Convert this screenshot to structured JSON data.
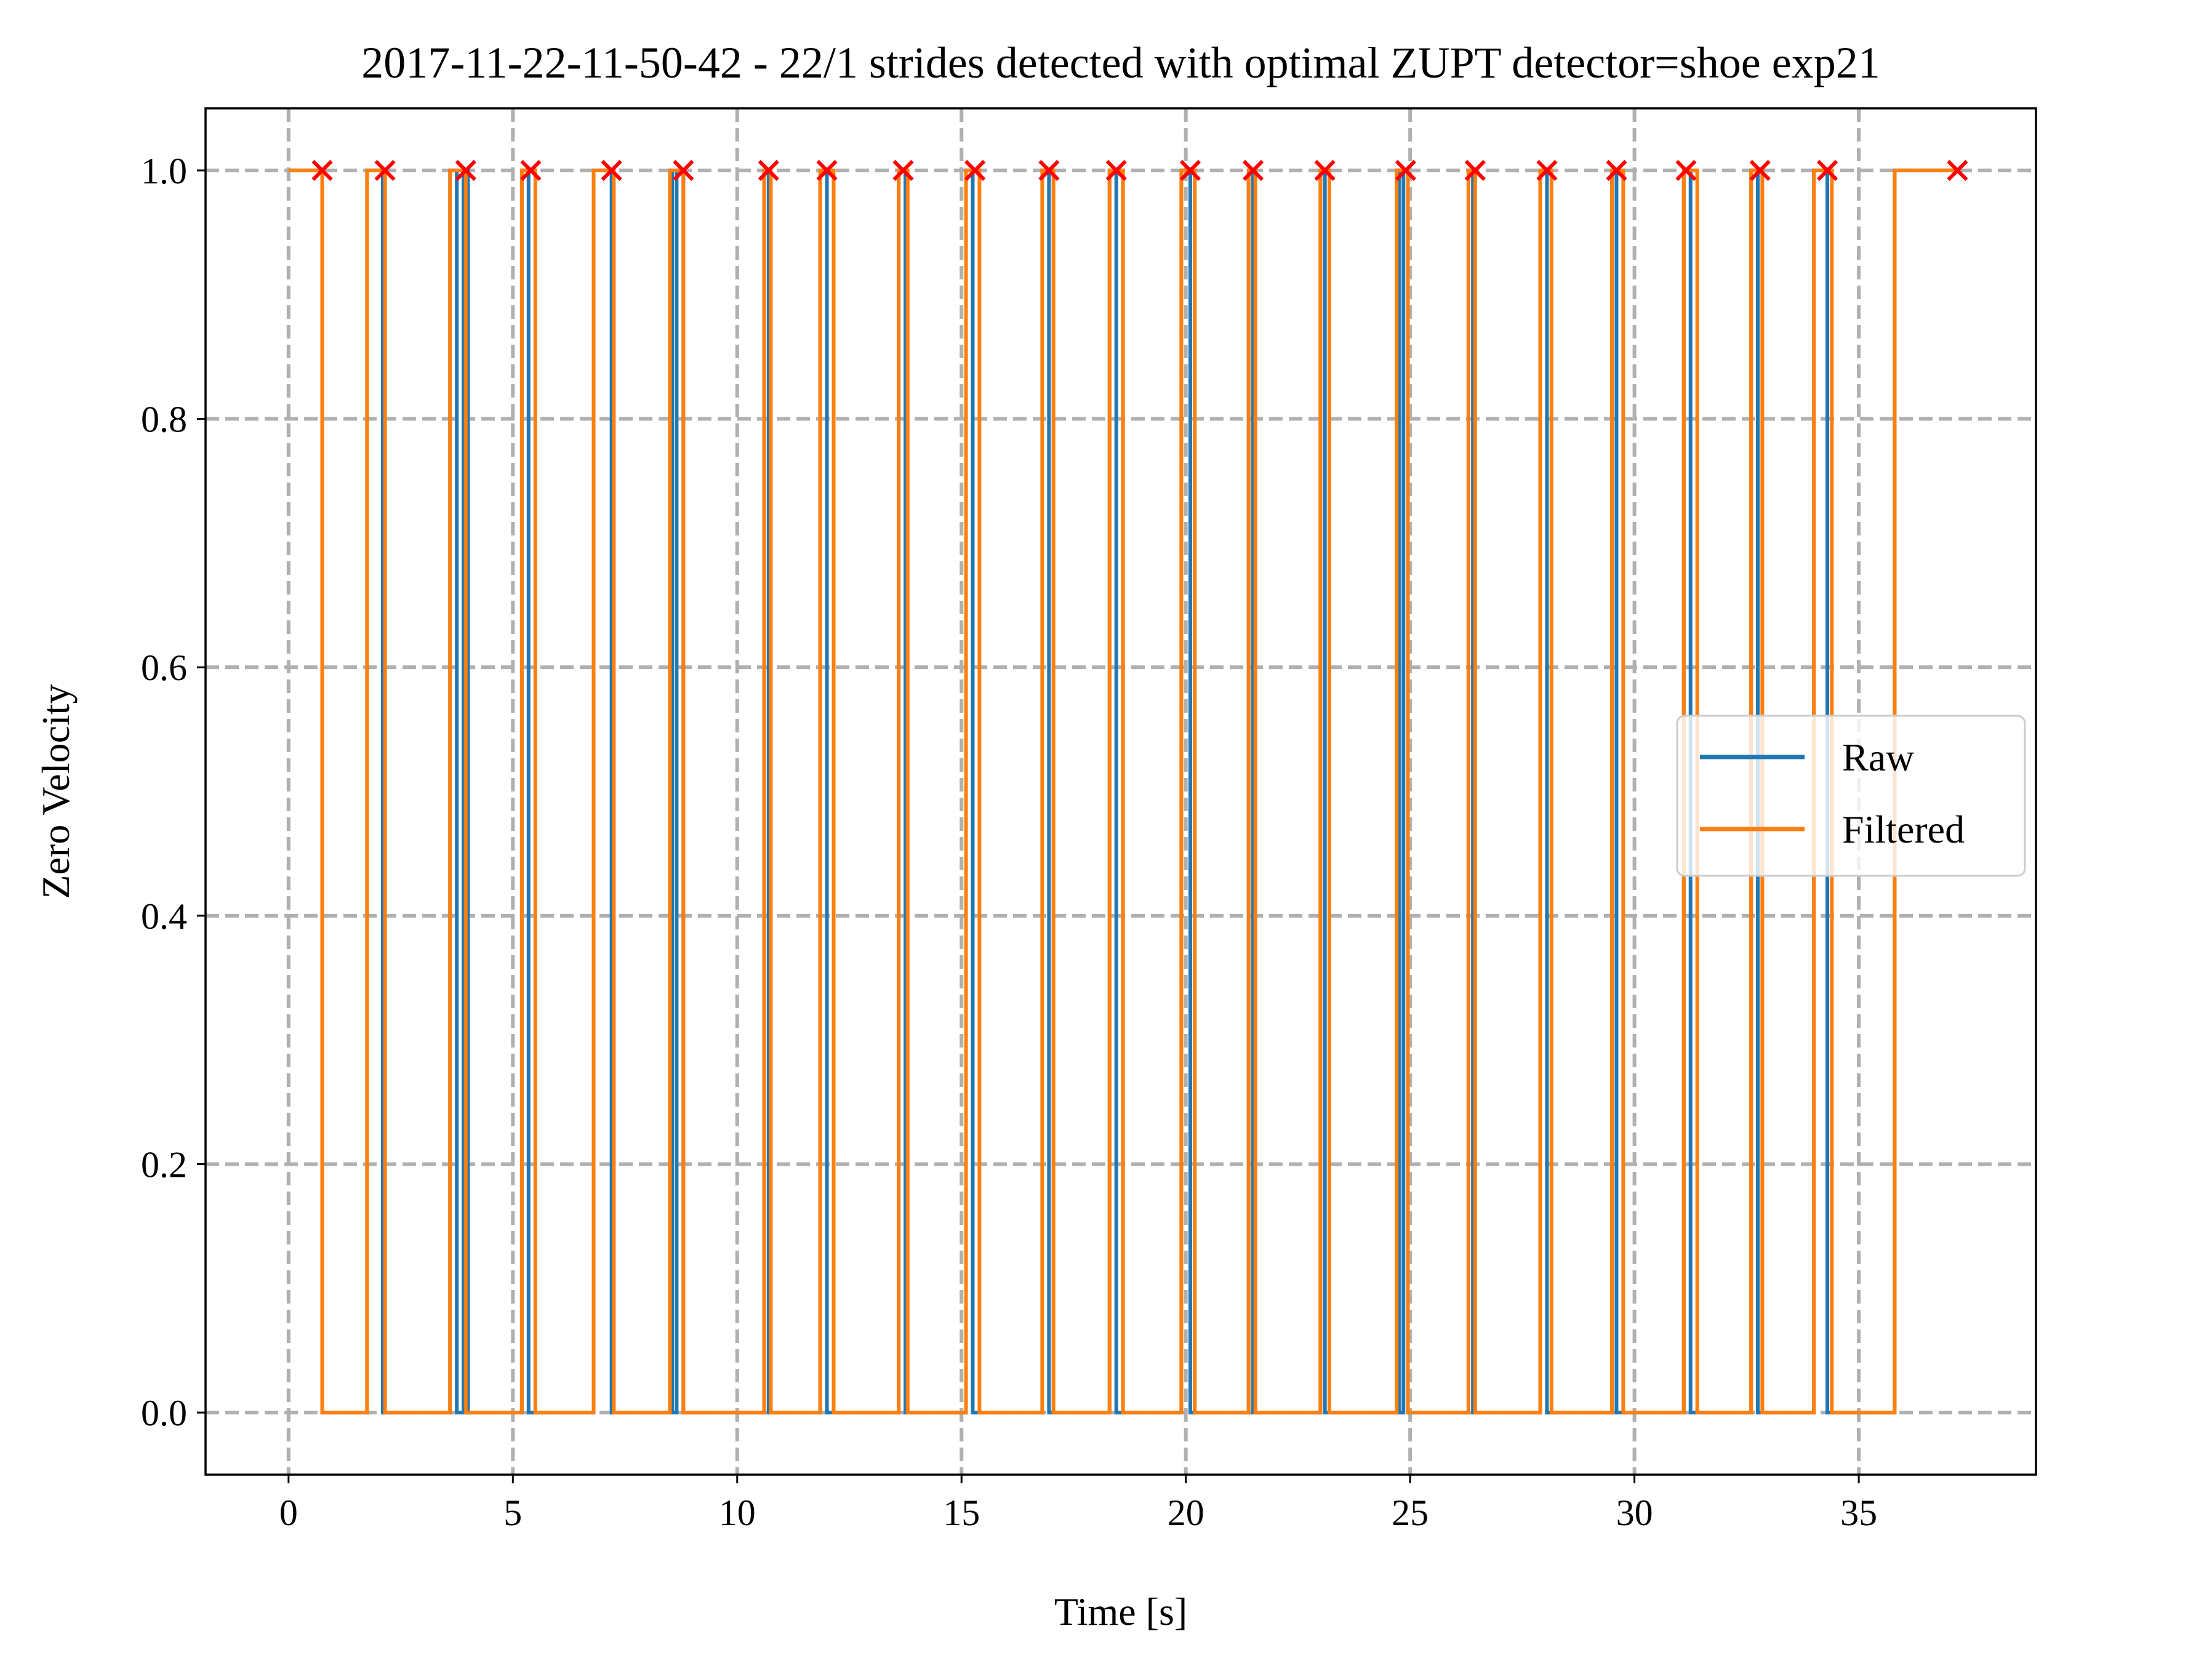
{
  "chart_data": {
    "type": "line",
    "title": "2017-11-22-11-50-42 - 22/1 strides detected with optimal ZUPT detector=shoe exp21",
    "xlabel": "Time [s]",
    "ylabel": "Zero Velocity",
    "xlim": [
      -1.85,
      38.95
    ],
    "ylim": [
      -0.05,
      1.05
    ],
    "xticks": [
      0,
      5,
      10,
      15,
      20,
      25,
      30,
      35
    ],
    "yticks": [
      0.0,
      0.2,
      0.4,
      0.6,
      0.8,
      1.0
    ],
    "xtick_labels": [
      "0",
      "5",
      "10",
      "15",
      "20",
      "25",
      "30",
      "35"
    ],
    "ytick_labels": [
      "0.0",
      "0.2",
      "0.4",
      "0.6",
      "0.8",
      "1.0"
    ],
    "grid": true,
    "legend_position": "center-right",
    "series": [
      {
        "name": "Raw",
        "color": "#1f77b4",
        "style": "step",
        "one_intervals": [
          [
            0.0,
            0.75
          ],
          [
            1.75,
            2.1
          ],
          [
            3.6,
            3.75
          ],
          [
            3.9,
            4.0
          ],
          [
            5.2,
            5.35
          ],
          [
            6.8,
            7.2
          ],
          [
            8.5,
            8.55
          ],
          [
            8.65,
            8.8
          ],
          [
            10.6,
            10.7
          ],
          [
            11.85,
            12.0
          ],
          [
            13.6,
            13.75
          ],
          [
            15.1,
            15.25
          ],
          [
            16.8,
            16.95
          ],
          [
            18.3,
            18.45
          ],
          [
            19.9,
            20.1
          ],
          [
            21.4,
            21.5
          ],
          [
            23.0,
            23.1
          ],
          [
            24.7,
            24.75
          ],
          [
            24.85,
            24.95
          ],
          [
            26.3,
            26.4
          ],
          [
            27.9,
            28.05
          ],
          [
            29.5,
            29.6
          ],
          [
            31.1,
            31.25
          ],
          [
            32.6,
            32.75
          ],
          [
            34.0,
            34.3
          ],
          [
            35.8,
            37.2
          ]
        ]
      },
      {
        "name": "Filtered",
        "color": "#ff7f0e",
        "style": "step",
        "one_intervals": [
          [
            0.0,
            0.75
          ],
          [
            1.75,
            2.15
          ],
          [
            3.6,
            3.95
          ],
          [
            5.2,
            5.5
          ],
          [
            6.8,
            7.25
          ],
          [
            8.5,
            8.8
          ],
          [
            10.6,
            10.75
          ],
          [
            11.85,
            12.15
          ],
          [
            13.6,
            13.8
          ],
          [
            15.1,
            15.4
          ],
          [
            16.8,
            17.05
          ],
          [
            18.3,
            18.6
          ],
          [
            19.9,
            20.2
          ],
          [
            21.4,
            21.55
          ],
          [
            23.0,
            23.2
          ],
          [
            24.7,
            24.95
          ],
          [
            26.3,
            26.45
          ],
          [
            27.9,
            28.15
          ],
          [
            29.5,
            29.75
          ],
          [
            31.1,
            31.4
          ],
          [
            32.6,
            32.85
          ],
          [
            34.0,
            34.4
          ],
          [
            35.8,
            37.2
          ]
        ]
      }
    ],
    "markers": {
      "color": "#ff0000",
      "symbol": "x",
      "y": 1.0,
      "x": [
        0.75,
        2.15,
        3.95,
        5.4,
        7.2,
        8.8,
        10.7,
        12.0,
        13.7,
        15.3,
        16.95,
        18.45,
        20.1,
        21.5,
        23.1,
        24.9,
        26.45,
        28.05,
        29.6,
        31.15,
        32.8,
        34.3,
        37.2
      ]
    }
  }
}
